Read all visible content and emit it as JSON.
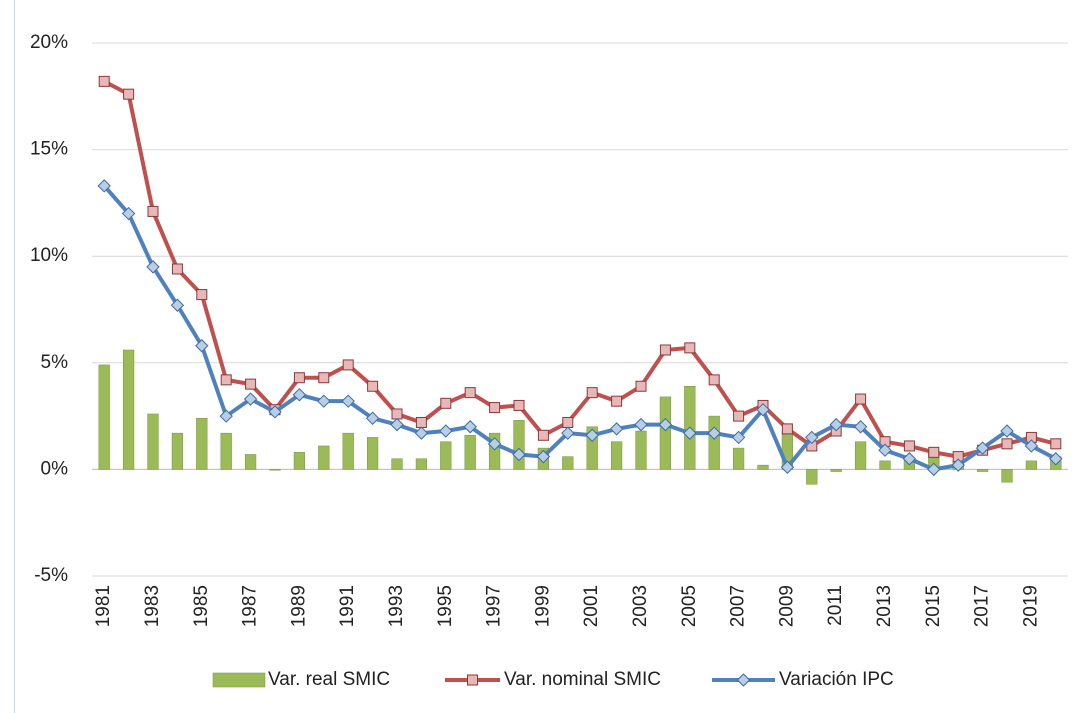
{
  "chart_data": {
    "type": "bar_line",
    "categories": [
      "1981",
      null,
      "1983",
      null,
      "1985",
      null,
      "1987",
      null,
      "1989",
      null,
      "1991",
      null,
      "1993",
      null,
      "1995",
      null,
      "1997",
      null,
      "1999",
      null,
      "2001",
      null,
      "2003",
      null,
      "2005",
      null,
      "2007",
      null,
      "2009",
      null,
      "2011",
      null,
      "2013",
      null,
      "2015",
      null,
      "2017",
      null,
      "2019",
      null
    ],
    "series": [
      {
        "name": "Var. real SMIC",
        "type": "bar",
        "color": "#9bbb59",
        "values": [
          4.9,
          5.6,
          2.6,
          1.7,
          2.4,
          1.7,
          0.7,
          0.0,
          0.8,
          1.1,
          1.7,
          1.5,
          0.5,
          0.5,
          1.3,
          1.6,
          1.7,
          2.3,
          1.0,
          0.6,
          2.0,
          1.3,
          1.8,
          3.4,
          3.9,
          2.5,
          1.0,
          0.2,
          1.8,
          -0.7,
          -0.1,
          1.3,
          0.4,
          0.5,
          0.8,
          0.4,
          -0.1,
          -0.6,
          0.4,
          0.6
        ]
      },
      {
        "name": "Var. nominal SMIC",
        "type": "line",
        "color": "#c0504d",
        "marker": "square",
        "values": [
          18.2,
          17.6,
          12.1,
          9.4,
          8.2,
          4.2,
          4.0,
          2.8,
          4.3,
          4.3,
          4.9,
          3.9,
          2.6,
          2.2,
          3.1,
          3.6,
          2.9,
          3.0,
          1.6,
          2.2,
          3.6,
          3.2,
          3.9,
          5.6,
          5.7,
          4.2,
          2.5,
          3.0,
          1.9,
          1.1,
          1.8,
          3.3,
          1.3,
          1.1,
          0.8,
          0.6,
          0.9,
          1.2,
          1.5,
          1.2
        ]
      },
      {
        "name": "Variación IPC",
        "type": "line",
        "color": "#4f81bd",
        "marker": "diamond",
        "values": [
          13.3,
          12.0,
          9.5,
          7.7,
          5.8,
          2.5,
          3.3,
          2.7,
          3.5,
          3.2,
          3.2,
          2.4,
          2.1,
          1.7,
          1.8,
          2.0,
          1.2,
          0.7,
          0.6,
          1.7,
          1.6,
          1.9,
          2.1,
          2.1,
          1.7,
          1.7,
          1.5,
          2.8,
          0.1,
          1.5,
          2.1,
          2.0,
          0.9,
          0.5,
          0.0,
          0.2,
          1.0,
          1.8,
          1.1,
          0.5
        ]
      }
    ],
    "ylim": [
      -5,
      20
    ],
    "yticks": [
      {
        "value": -5,
        "label": "-5%"
      },
      {
        "value": 0,
        "label": "0%"
      },
      {
        "value": 5,
        "label": "5%"
      },
      {
        "value": 10,
        "label": "10%"
      },
      {
        "value": 15,
        "label": "15%"
      },
      {
        "value": 20,
        "label": "20%"
      }
    ],
    "grid": true,
    "legend": "bottom"
  }
}
